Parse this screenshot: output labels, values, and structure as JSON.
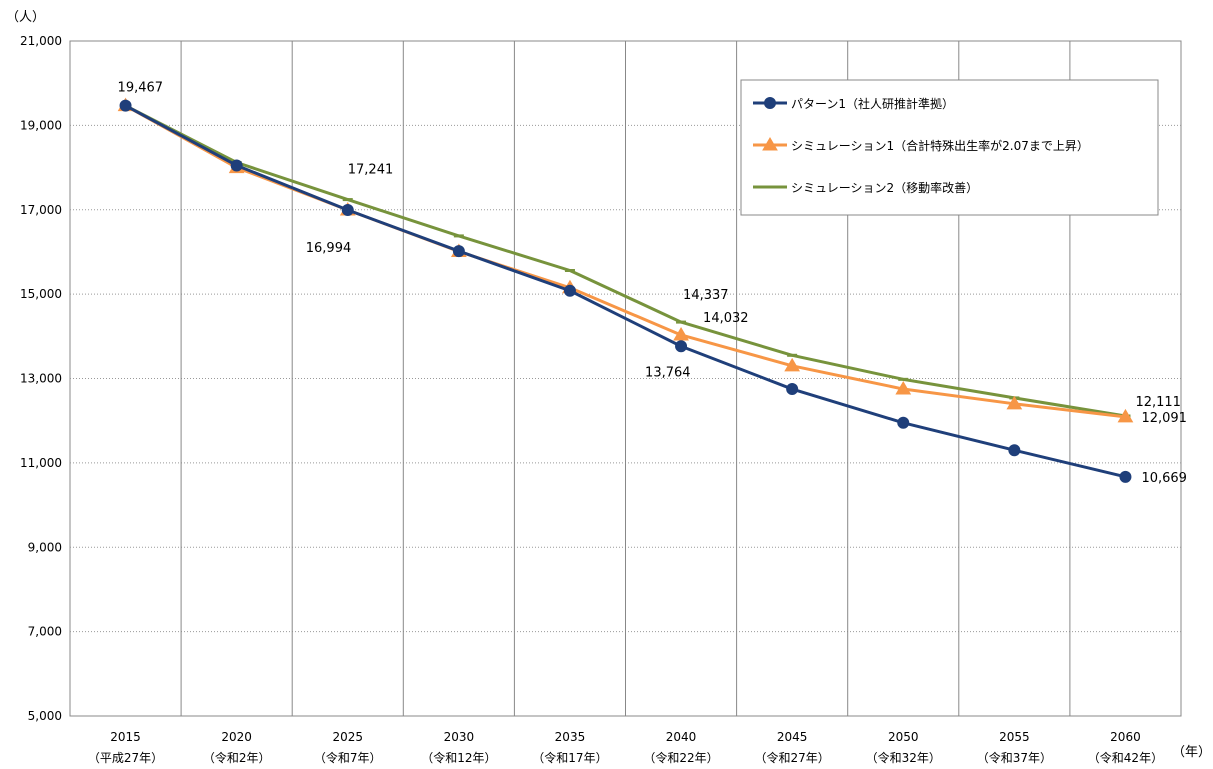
{
  "chart_data": {
    "type": "line",
    "y_unit_label": "（人）",
    "x_unit_label": "（年）",
    "ylim": [
      5000,
      21000
    ],
    "yticks": [
      5000,
      7000,
      9000,
      11000,
      13000,
      15000,
      17000,
      19000,
      21000
    ],
    "ytick_labels": [
      "5,000",
      "7,000",
      "9,000",
      "11,000",
      "13,000",
      "15,000",
      "17,000",
      "19,000",
      "21,000"
    ],
    "categories": [
      "2015",
      "2020",
      "2025",
      "2030",
      "2035",
      "2040",
      "2045",
      "2050",
      "2055",
      "2060"
    ],
    "category_sublabels": [
      "（平成27年）",
      "（令和2年）",
      "（令和7年）",
      "（令和12年）",
      "（令和17年）",
      "（令和22年）",
      "（令和27年）",
      "（令和32年）",
      "（令和37年）",
      "（令和42年）"
    ],
    "grid": true,
    "legend_position": "top-right",
    "series": [
      {
        "name": "パターン1（社人研推計準拠）",
        "color": "#1F3F7A",
        "marker": "circle",
        "values": [
          19467,
          18050,
          16994,
          16020,
          15080,
          13764,
          12750,
          11950,
          11300,
          10669
        ]
      },
      {
        "name": "シミュレーション1（合計特殊出生率が2.07まで上昇）",
        "color": "#F79646",
        "marker": "triangle",
        "values": [
          19467,
          18000,
          16994,
          16010,
          15150,
          14032,
          13300,
          12750,
          12400,
          12091
        ]
      },
      {
        "name": "シミュレーション2（移動率改善）",
        "color": "#77933C",
        "marker": "dash",
        "values": [
          19467,
          18120,
          17241,
          16380,
          15560,
          14337,
          13550,
          12980,
          12540,
          12111
        ]
      }
    ],
    "data_labels": [
      {
        "text": "19,467",
        "series": 0,
        "index": 0,
        "dx": -8,
        "dy": -14
      },
      {
        "text": "17,241",
        "series": 2,
        "index": 2,
        "dx": 0,
        "dy": -26
      },
      {
        "text": "16,994",
        "series": 0,
        "index": 2,
        "dx": -42,
        "dy": 42
      },
      {
        "text": "14,337",
        "series": 2,
        "index": 5,
        "dx": 2,
        "dy": -23
      },
      {
        "text": "14,032",
        "series": 1,
        "index": 5,
        "dx": 22,
        "dy": -13
      },
      {
        "text": "13,764",
        "series": 0,
        "index": 5,
        "dx": -36,
        "dy": 30
      },
      {
        "text": "12,111",
        "series": 2,
        "index": 9,
        "dx": 10,
        "dy": -10
      },
      {
        "text": "12,091",
        "series": 1,
        "index": 9,
        "dx": 16,
        "dy": 5
      },
      {
        "text": "10,669",
        "series": 0,
        "index": 9,
        "dx": 16,
        "dy": 5
      }
    ]
  }
}
